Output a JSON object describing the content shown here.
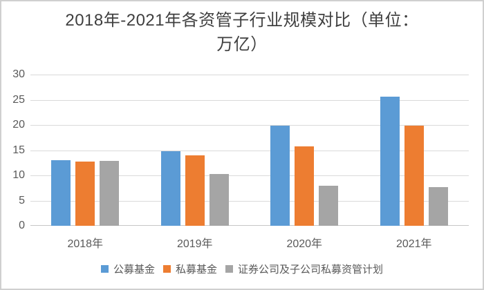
{
  "title_lines": [
    "2018年-2021年各资管子行业规模对比（单位：",
    "万亿）"
  ],
  "chart_data": {
    "type": "bar",
    "title": "2018年-2021年各资管子行业规模对比（单位：万亿）",
    "unit": "万亿",
    "categories": [
      "2018年",
      "2019年",
      "2020年",
      "2021年"
    ],
    "series": [
      {
        "name": "公募基金",
        "color": "#5B9BD5",
        "values": [
          13.0,
          14.8,
          19.9,
          25.6
        ]
      },
      {
        "name": "私募基金",
        "color": "#ED7D31",
        "values": [
          12.8,
          14.0,
          15.8,
          19.8
        ]
      },
      {
        "name": "证券公司及子公司私募资管计划",
        "color": "#A5A5A5",
        "values": [
          12.9,
          10.3,
          8.0,
          7.7
        ]
      }
    ],
    "ylim": [
      0,
      30
    ],
    "y_ticks": [
      0,
      5,
      10,
      15,
      20,
      25,
      30
    ],
    "grid": true,
    "legend_position": "bottom",
    "colors": {
      "grid_line": "#d9d9d9",
      "axis_text": "#595959",
      "title_text": "#3f3f3f",
      "frame_border": "#cfcfcf"
    }
  }
}
